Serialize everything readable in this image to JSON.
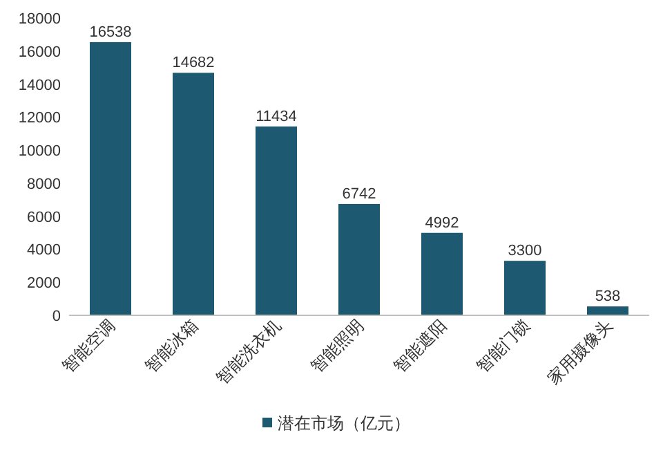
{
  "chart_data": {
    "type": "bar",
    "categories": [
      "智能空调",
      "智能冰箱",
      "智能洗衣机",
      "智能照明",
      "智能遮阳",
      "智能门锁",
      "家用摄像头"
    ],
    "series": [
      {
        "name": "潜在市场（亿元）",
        "color": "#1d5a72",
        "values": [
          16538,
          14682,
          11434,
          6742,
          4992,
          3300,
          538
        ]
      }
    ],
    "ylim": [
      0,
      18000
    ],
    "yticks": [
      0,
      2000,
      4000,
      6000,
      8000,
      10000,
      12000,
      14000,
      16000,
      18000
    ],
    "data_labels": true,
    "legend": "bottom",
    "grid": false
  }
}
